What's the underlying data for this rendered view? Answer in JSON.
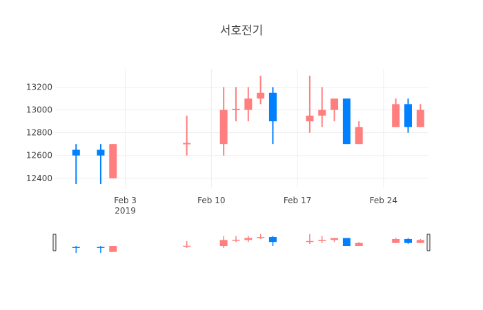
{
  "chart_data": {
    "type": "candlestick",
    "title": "서호전기",
    "x_tick_labels": [
      "Feb 3",
      "Feb 10",
      "Feb 17",
      "Feb 24"
    ],
    "x_tick_year": "2019",
    "x_tick_dates": [
      "2019-02-03",
      "2019-02-10",
      "2019-02-17",
      "2019-02-24"
    ],
    "y_ticks": [
      12400,
      12600,
      12800,
      13000,
      13200
    ],
    "y_tick_labels": [
      "12400",
      "12600",
      "12800",
      "13000",
      "13200"
    ],
    "x_range": [
      "2019-01-29",
      "2019-02-27"
    ],
    "ylim": [
      12320,
      13360
    ],
    "grid": true,
    "range_slider": true,
    "colors": {
      "increasing": "#ff7f7f",
      "decreasing": "#0080ff"
    },
    "candles": [
      {
        "date": "2019-01-30",
        "open": 12650,
        "high": 12700,
        "low": 12350,
        "close": 12600
      },
      {
        "date": "2019-02-01",
        "open": 12650,
        "high": 12700,
        "low": 12350,
        "close": 12600
      },
      {
        "date": "2019-02-02",
        "open": 12400,
        "high": 12700,
        "low": 12400,
        "close": 12700
      },
      {
        "date": "2019-02-08",
        "open": 12700,
        "high": 12950,
        "low": 12600,
        "close": 12710
      },
      {
        "date": "2019-02-11",
        "open": 12700,
        "high": 13200,
        "low": 12600,
        "close": 13000
      },
      {
        "date": "2019-02-12",
        "open": 13000,
        "high": 13200,
        "low": 12900,
        "close": 13010
      },
      {
        "date": "2019-02-13",
        "open": 13000,
        "high": 13200,
        "low": 12900,
        "close": 13100
      },
      {
        "date": "2019-02-14",
        "open": 13100,
        "high": 13300,
        "low": 13050,
        "close": 13150
      },
      {
        "date": "2019-02-15",
        "open": 13150,
        "high": 13200,
        "low": 12700,
        "close": 12900
      },
      {
        "date": "2019-02-18",
        "open": 12900,
        "high": 13300,
        "low": 12800,
        "close": 12950
      },
      {
        "date": "2019-02-19",
        "open": 12950,
        "high": 13200,
        "low": 12850,
        "close": 13000
      },
      {
        "date": "2019-02-20",
        "open": 13000,
        "high": 13100,
        "low": 12900,
        "close": 13100
      },
      {
        "date": "2019-02-21",
        "open": 13100,
        "high": 13100,
        "low": 12700,
        "close": 12700
      },
      {
        "date": "2019-02-22",
        "open": 12700,
        "high": 12900,
        "low": 12700,
        "close": 12850
      },
      {
        "date": "2019-02-25",
        "open": 12850,
        "high": 13100,
        "low": 12850,
        "close": 13050
      },
      {
        "date": "2019-02-26",
        "open": 13050,
        "high": 13100,
        "low": 12800,
        "close": 12850
      },
      {
        "date": "2019-02-27",
        "open": 12850,
        "high": 13050,
        "low": 12850,
        "close": 13000
      }
    ]
  }
}
